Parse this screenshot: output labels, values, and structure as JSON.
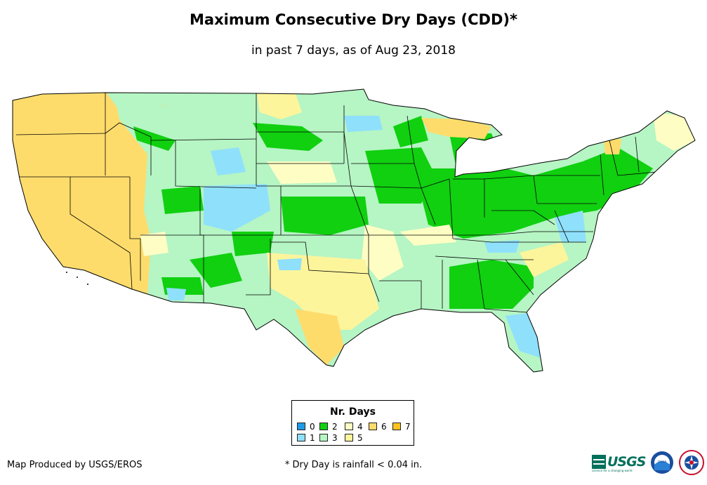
{
  "title": "Maximum Consecutive Dry Days (CDD)*",
  "subtitle": "in past 7 days, as of Aug 23, 2018",
  "legend": {
    "title": "Nr. Days",
    "items": [
      {
        "label": "0",
        "color": "#1e9be8"
      },
      {
        "label": "1",
        "color": "#8fe0fb"
      },
      {
        "label": "2",
        "color": "#10d010"
      },
      {
        "label": "3",
        "color": "#b6f5c4"
      },
      {
        "label": "4",
        "color": "#fefec4"
      },
      {
        "label": "5",
        "color": "#fdf59c"
      },
      {
        "label": "6",
        "color": "#fedc6c"
      },
      {
        "label": "7",
        "color": "#fec41c"
      }
    ]
  },
  "footer": {
    "credit": "Map Produced by USGS/EROS",
    "footnote": "* Dry Day is rainfall < 0.04 in.",
    "usgs_logo": "USGS",
    "usgs_tagline": "science for a changing world",
    "noaa_logo": "noaa",
    "nws_logo": "national-weather-service-icon"
  }
}
